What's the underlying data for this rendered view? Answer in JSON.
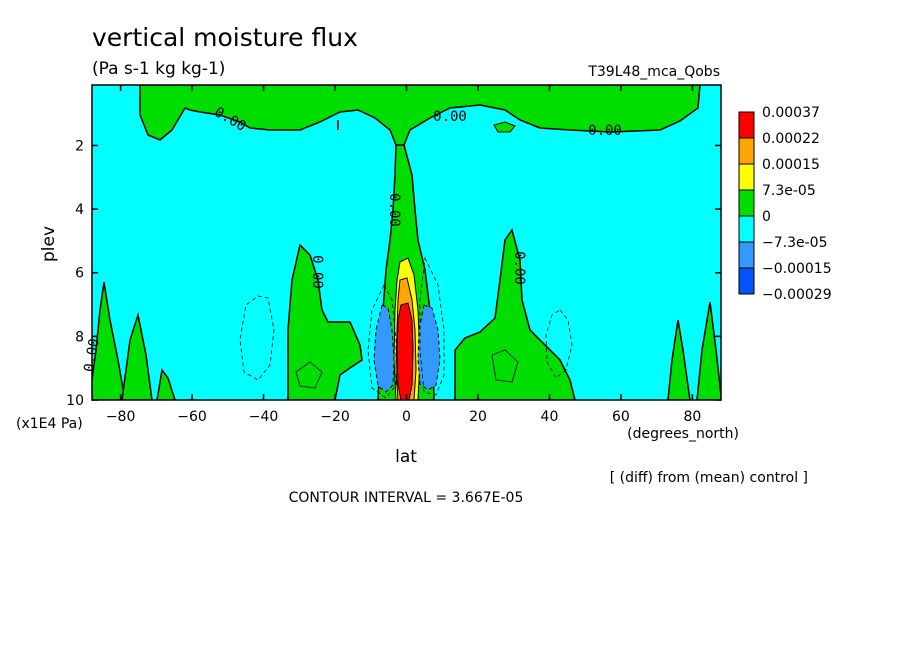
{
  "chart_data": {
    "type": "heatmap",
    "title": "vertical moisture flux",
    "subtitle": "(Pa s-1 kg kg-1)",
    "run_label": "T39L48_mca_Qobs",
    "xlabel": "lat",
    "x_units": "(degrees_north)",
    "ylabel": "plev",
    "y_units": "(x1E4 Pa)",
    "xlim": [
      -88,
      88
    ],
    "ylim": [
      10,
      0.1
    ],
    "y_reversed": true,
    "x_ticks": [
      -80,
      -60,
      -40,
      -20,
      0,
      20,
      40,
      60,
      80
    ],
    "y_ticks": [
      2,
      4,
      6,
      8,
      10
    ],
    "contour_interval_text": "CONTOUR INTERVAL = 3.667E-05",
    "diff_note": "[ (diff) from (mean) control ]",
    "contour_labels": [
      "0.00",
      "0.00",
      "0.00",
      "0.00",
      "0.00",
      "0.00",
      "0.00"
    ],
    "legend": {
      "placement": "right",
      "levels": [
        {
          "label": "0.00037",
          "color": "#ff0000"
        },
        {
          "label": "0.00022",
          "color": "#ffa500"
        },
        {
          "label": "0.00015",
          "color": "#ffff00"
        },
        {
          "label": "7.3e-05",
          "color": "#00dd00"
        },
        {
          "label": "0",
          "color": "#00ffff"
        },
        {
          "label": "−7.3e-05",
          "color": "#3399ff"
        },
        {
          "label": "−0.00015",
          "color": "#0055ff"
        },
        {
          "label": "−0.00029",
          "color": null
        }
      ]
    },
    "regions": [
      {
        "name": "background",
        "sign": "negative",
        "level": "0 to -7.3e-05",
        "color": "#00ffff"
      },
      {
        "name": "positive-areas",
        "level": "0 to 7.3e-05",
        "color": "#00dd00"
      },
      {
        "name": "equatorial-core-yellow",
        "level": "7.3e-05 to 0.00015",
        "color": "#ffff00"
      },
      {
        "name": "equatorial-core-orange",
        "level": "0.00015 to 0.00022",
        "color": "#ffa500"
      },
      {
        "name": "equatorial-core-red",
        "level": "> 0.00022",
        "color": "#ff0000"
      },
      {
        "name": "flanking-downdrafts",
        "level": "-7.3e-05 to -0.00015",
        "color": "#3399ff"
      }
    ]
  }
}
